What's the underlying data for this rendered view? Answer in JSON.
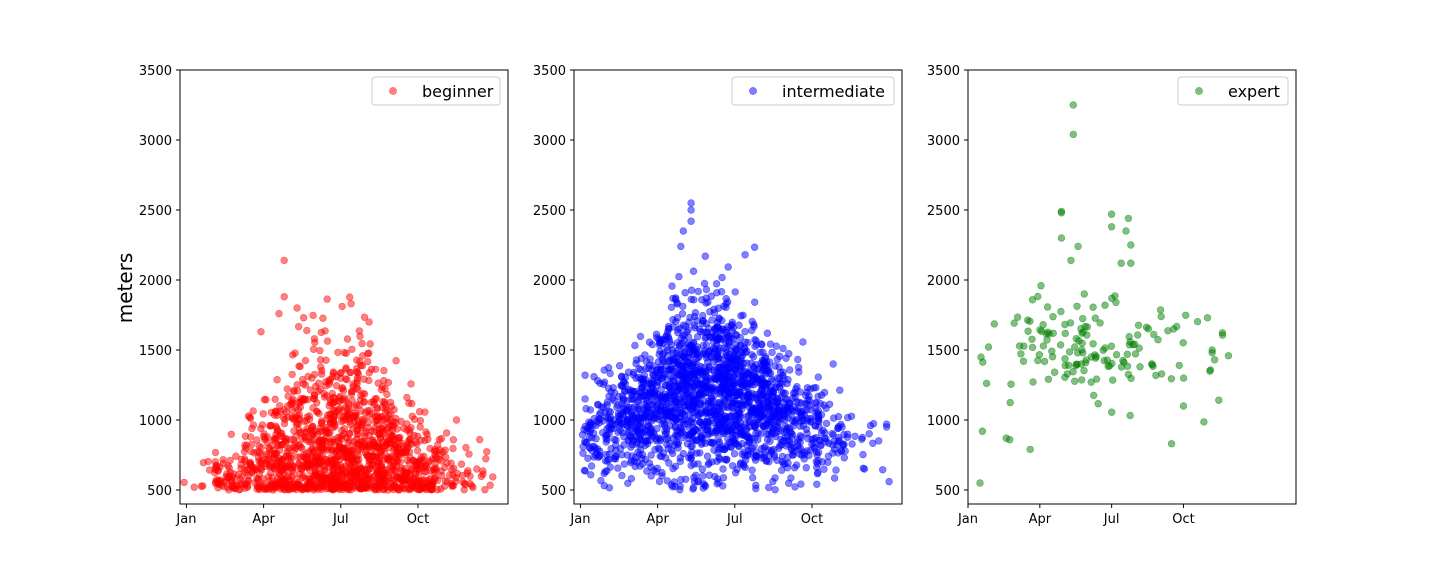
{
  "figure": {
    "ylabel": "meters"
  },
  "chart_data": [
    {
      "type": "scatter",
      "x_axis": {
        "kind": "month",
        "ticks": [
          "Jan",
          "Apr",
          "Jul",
          "Oct"
        ]
      },
      "ylim": [
        400,
        3500
      ],
      "yticks": [
        500,
        1000,
        1500,
        2000,
        2500,
        3000,
        3500
      ],
      "ylabel": "meters",
      "grid": false,
      "legend": "top-right",
      "series": [
        {
          "name": "beginner",
          "color": "#ff0000",
          "alpha": 0.5,
          "count": 1500,
          "peak_month": 7,
          "spread_months": 2.3,
          "month_range": [
            0.9,
            13.0
          ],
          "y_floor": 500,
          "y_mode": 600,
          "y_max": 2140,
          "key_points": [
            {
              "x": 4.8,
              "y": 2140
            },
            {
              "x": 4.8,
              "y": 1880
            },
            {
              "x": 7.4,
              "y": 1830
            },
            {
              "x": 5.3,
              "y": 1800
            },
            {
              "x": 4.6,
              "y": 1760
            },
            {
              "x": 8.1,
              "y": 1700
            },
            {
              "x": 3.9,
              "y": 1630
            },
            {
              "x": 11.5,
              "y": 1000
            },
            {
              "x": 12.4,
              "y": 860
            }
          ]
        },
        {
          "name": "intermediate",
          "color": "#0000ff",
          "alpha": 0.5,
          "count": 2000,
          "peak_month": 6,
          "spread_months": 2.5,
          "month_range": [
            1.0,
            13.0
          ],
          "y_floor": 500,
          "y_mode": 1250,
          "y_max": 2550,
          "key_points": [
            {
              "x": 5.3,
              "y": 2550
            },
            {
              "x": 5.3,
              "y": 2500
            },
            {
              "x": 5.3,
              "y": 2420
            },
            {
              "x": 5.0,
              "y": 2350
            },
            {
              "x": 4.9,
              "y": 2240
            },
            {
              "x": 7.4,
              "y": 2180
            },
            {
              "x": 12.9,
              "y": 970
            },
            {
              "x": 12.9,
              "y": 950
            },
            {
              "x": 13.0,
              "y": 560
            }
          ]
        },
        {
          "name": "expert",
          "color": "#008000",
          "alpha": 0.5,
          "count": 150,
          "peak_month": 6,
          "spread_months": 2.3,
          "month_range": [
            1.5,
            13.1
          ],
          "y_floor": 500,
          "y_mode": 1500,
          "y_max": 3250,
          "key_points": [
            {
              "x": 5.4,
              "y": 3250
            },
            {
              "x": 5.4,
              "y": 3040
            },
            {
              "x": 4.9,
              "y": 2490
            },
            {
              "x": 4.9,
              "y": 2480
            },
            {
              "x": 7.0,
              "y": 2470
            },
            {
              "x": 7.7,
              "y": 2440
            },
            {
              "x": 7.0,
              "y": 2380
            },
            {
              "x": 7.6,
              "y": 2350
            },
            {
              "x": 4.9,
              "y": 2300
            },
            {
              "x": 7.8,
              "y": 2250
            },
            {
              "x": 5.6,
              "y": 2240
            },
            {
              "x": 5.3,
              "y": 2140
            },
            {
              "x": 7.4,
              "y": 2120
            },
            {
              "x": 7.8,
              "y": 2120
            },
            {
              "x": 1.5,
              "y": 550
            },
            {
              "x": 1.6,
              "y": 920
            },
            {
              "x": 2.6,
              "y": 870
            },
            {
              "x": 3.6,
              "y": 790
            },
            {
              "x": 9.5,
              "y": 830
            },
            {
              "x": 10.0,
              "y": 1100
            },
            {
              "x": 11.2,
              "y": 1500
            },
            {
              "x": 11.2,
              "y": 1480
            },
            {
              "x": 11.3,
              "y": 1430
            },
            {
              "x": 11.1,
              "y": 1350
            }
          ]
        }
      ]
    }
  ]
}
